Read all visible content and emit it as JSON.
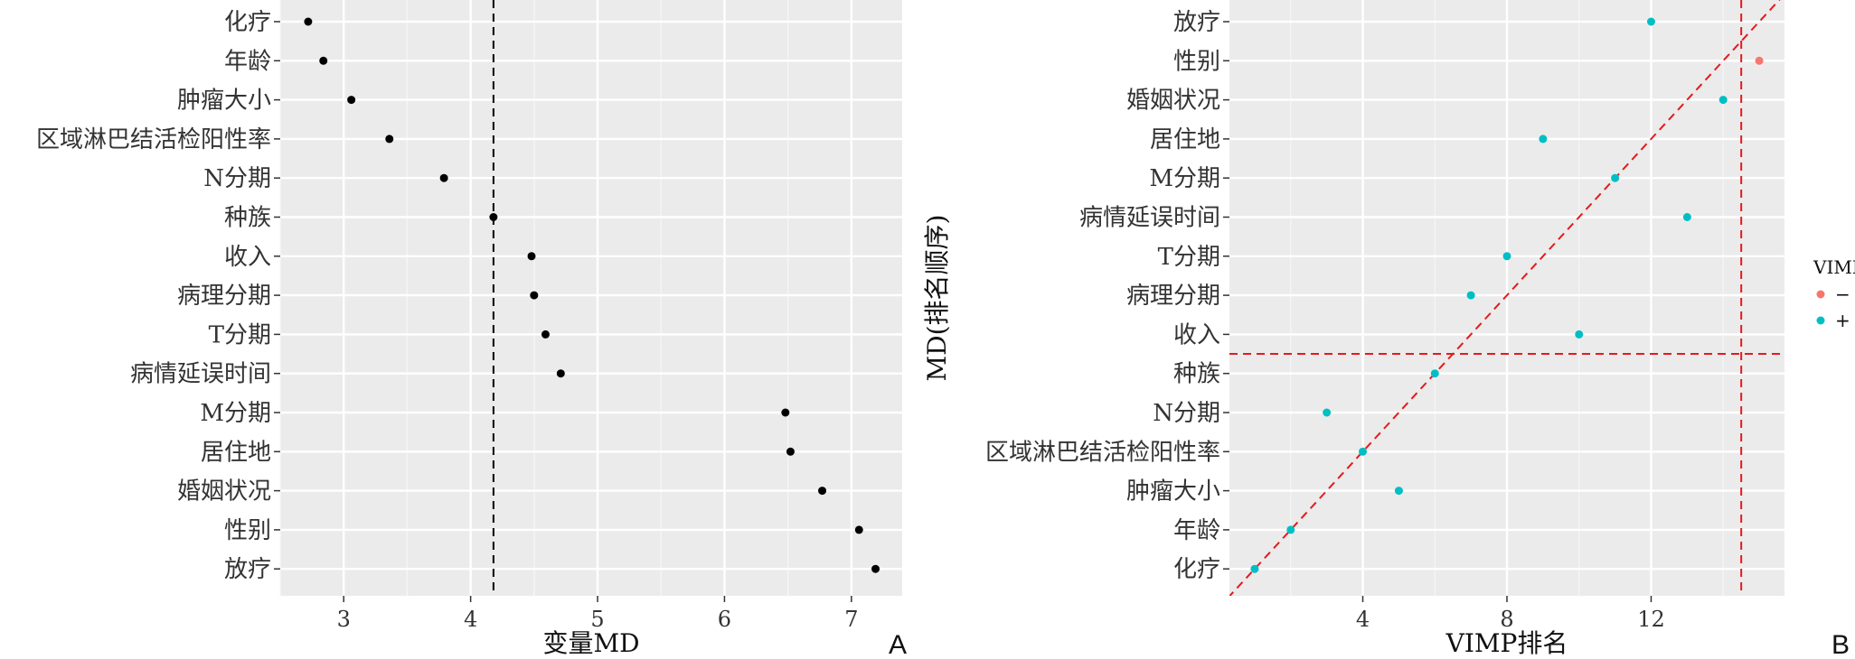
{
  "chart_data": [
    {
      "type": "scatter",
      "panel_letter": "A",
      "xlabel": "变量MD",
      "ylabel": "",
      "xlim": [
        2.5,
        7.4
      ],
      "xticks": [
        3,
        4,
        5,
        6,
        7
      ],
      "grid": true,
      "reference_line": {
        "axis": "x",
        "value": 4.18,
        "style": "dashed",
        "color": "#000000"
      },
      "points": [
        {
          "label": "化疗",
          "x": 2.72
        },
        {
          "label": "年龄",
          "x": 2.84
        },
        {
          "label": "肿瘤大小",
          "x": 3.06
        },
        {
          "label": "区域淋巴结活检阳性率",
          "x": 3.36
        },
        {
          "label": "N分期",
          "x": 3.79
        },
        {
          "label": "种族",
          "x": 4.18
        },
        {
          "label": "收入",
          "x": 4.48
        },
        {
          "label": "病理分期",
          "x": 4.5
        },
        {
          "label": "T分期",
          "x": 4.59
        },
        {
          "label": "病情延误时间",
          "x": 4.71
        },
        {
          "label": "M分期",
          "x": 6.48
        },
        {
          "label": "居住地",
          "x": 6.52
        },
        {
          "label": "婚姻状况",
          "x": 6.77
        },
        {
          "label": "性别",
          "x": 7.06
        },
        {
          "label": "放疗",
          "x": 7.19
        }
      ]
    },
    {
      "type": "scatter",
      "panel_letter": "B",
      "xlabel": "VIMP排名",
      "ylabel": "MD(排名顺序)",
      "xlim": [
        0.3,
        15.7
      ],
      "xticks": [
        4,
        8,
        12
      ],
      "grid": true,
      "reference_lines": [
        {
          "axis": "x",
          "value": 14.5,
          "style": "dashed",
          "color": "#e41a1c"
        },
        {
          "axis": "y_between",
          "value": "种族|收入",
          "style": "dashed",
          "color": "#e41a1c"
        },
        {
          "axis": "diagonal",
          "style": "dashed",
          "color": "#e41a1c"
        }
      ],
      "legend": {
        "title": "VIMP",
        "placement": "right",
        "entries": [
          {
            "label": "−",
            "color": "#f8766d"
          },
          {
            "label": "+",
            "color": "#00bfc4"
          }
        ]
      },
      "points": [
        {
          "label": "放疗",
          "x": 12,
          "sign": "+"
        },
        {
          "label": "性别",
          "x": 15,
          "sign": "−"
        },
        {
          "label": "婚姻状况",
          "x": 14,
          "sign": "+"
        },
        {
          "label": "居住地",
          "x": 9,
          "sign": "+"
        },
        {
          "label": "M分期",
          "x": 11,
          "sign": "+"
        },
        {
          "label": "病情延误时间",
          "x": 13,
          "sign": "+"
        },
        {
          "label": "T分期",
          "x": 8,
          "sign": "+"
        },
        {
          "label": "病理分期",
          "x": 7,
          "sign": "+"
        },
        {
          "label": "收入",
          "x": 10,
          "sign": "+"
        },
        {
          "label": "种族",
          "x": 6,
          "sign": "+"
        },
        {
          "label": "N分期",
          "x": 3,
          "sign": "+"
        },
        {
          "label": "区域淋巴结活检阳性率",
          "x": 4,
          "sign": "+"
        },
        {
          "label": "肿瘤大小",
          "x": 5,
          "sign": "+"
        },
        {
          "label": "年龄",
          "x": 2,
          "sign": "+"
        },
        {
          "label": "化疗",
          "x": 1,
          "sign": "+"
        }
      ]
    }
  ]
}
